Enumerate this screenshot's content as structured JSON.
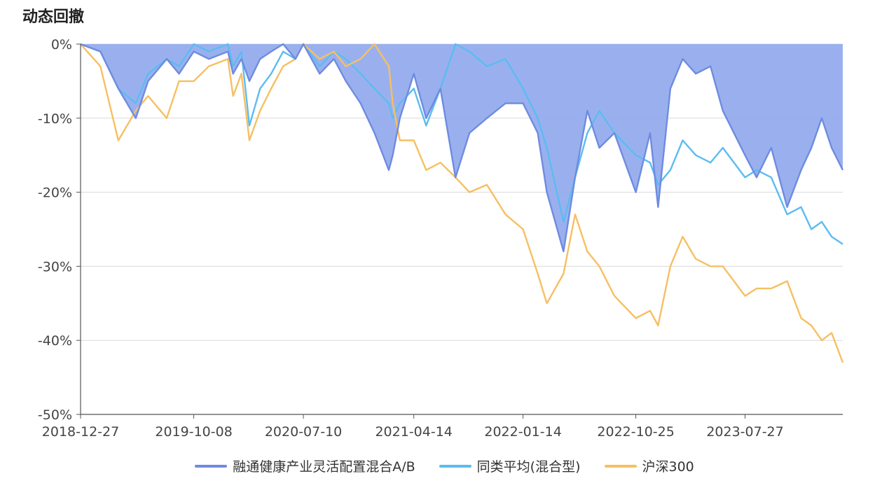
{
  "title": "动态回撤",
  "chart_data": {
    "type": "area",
    "x_ticks": [
      "2018-12-27",
      "2019-10-08",
      "2020-07-10",
      "2021-04-14",
      "2022-01-14",
      "2022-10-25",
      "2023-07-27"
    ],
    "x_range": [
      "2018-12-27",
      "2024-03-29"
    ],
    "y_ticks": [
      "0%",
      "-10%",
      "-20%",
      "-30%",
      "-40%",
      "-50%"
    ],
    "ylim": [
      -50,
      0
    ],
    "grid": true,
    "legend_position": "bottom",
    "x": [
      "2018-12-27",
      "2019-02-15",
      "2019-04-01",
      "2019-05-15",
      "2019-06-15",
      "2019-08-01",
      "2019-09-01",
      "2019-10-08",
      "2019-11-15",
      "2020-01-02",
      "2020-01-15",
      "2020-02-05",
      "2020-02-25",
      "2020-03-23",
      "2020-04-20",
      "2020-05-20",
      "2020-06-20",
      "2020-07-10",
      "2020-08-20",
      "2020-09-25",
      "2020-10-25",
      "2020-12-01",
      "2021-01-05",
      "2021-02-10",
      "2021-02-20",
      "2021-03-10",
      "2021-04-14",
      "2021-05-15",
      "2021-06-20",
      "2021-07-28",
      "2021-09-01",
      "2021-10-15",
      "2021-12-01",
      "2022-01-14",
      "2022-02-20",
      "2022-03-15",
      "2022-04-26",
      "2022-05-25",
      "2022-06-25",
      "2022-07-25",
      "2022-09-01",
      "2022-10-25",
      "2022-11-30",
      "2022-12-20",
      "2023-01-20",
      "2023-02-20",
      "2023-03-25",
      "2023-05-01",
      "2023-06-01",
      "2023-07-27",
      "2023-08-25",
      "2023-10-01",
      "2023-11-10",
      "2023-12-15",
      "2024-01-10",
      "2024-02-05",
      "2024-03-01",
      "2024-03-29"
    ],
    "series": [
      {
        "name": "融通健康产业灵活配置混合A/B",
        "color": "#6e8be0",
        "fill": "#95aced",
        "values": [
          0,
          -1,
          -6,
          -10,
          -5,
          -2,
          -4,
          -1,
          -2,
          -1,
          -4,
          -2,
          -5,
          -2,
          -1,
          0,
          -2,
          0,
          -4,
          -2,
          -5,
          -8,
          -12,
          -17,
          -15,
          -10,
          -4,
          -10,
          -6,
          -18,
          -12,
          -10,
          -8,
          -8,
          -12,
          -20,
          -28,
          -18,
          -9,
          -14,
          -12,
          -20,
          -12,
          -22,
          -6,
          -2,
          -4,
          -3,
          -9,
          -15,
          -18,
          -14,
          -22,
          -17,
          -14,
          -10,
          -14,
          -17
        ]
      },
      {
        "name": "同类平均(混合型)",
        "color": "#5bbcf2",
        "values": [
          0,
          -1,
          -6,
          -8,
          -4,
          -2,
          -3,
          0,
          -1,
          0,
          -3,
          -1,
          -11,
          -6,
          -4,
          -1,
          -2,
          0,
          -3,
          -1,
          -2,
          -4,
          -6,
          -8,
          -10,
          -8,
          -6,
          -11,
          -6,
          0,
          -1,
          -3,
          -2,
          -6,
          -10,
          -14,
          -24,
          -18,
          -12,
          -9,
          -12,
          -15,
          -16,
          -19,
          -17,
          -13,
          -15,
          -16,
          -14,
          -18,
          -17,
          -18,
          -23,
          -22,
          -25,
          -24,
          -26,
          -27
        ]
      },
      {
        "name": "沪深300",
        "color": "#f7bf62",
        "values": [
          0,
          -3,
          -13,
          -9,
          -7,
          -10,
          -5,
          -5,
          -3,
          -2,
          -7,
          -4,
          -13,
          -9,
          -6,
          -3,
          -2,
          0,
          -2,
          -1,
          -3,
          -2,
          0,
          -3,
          -8,
          -13,
          -13,
          -17,
          -16,
          -18,
          -20,
          -19,
          -23,
          -25,
          -31,
          -35,
          -31,
          -23,
          -28,
          -30,
          -34,
          -37,
          -36,
          -38,
          -30,
          -26,
          -29,
          -30,
          -30,
          -34,
          -33,
          -33,
          -32,
          -37,
          -38,
          -40,
          -39,
          -43
        ]
      }
    ]
  }
}
